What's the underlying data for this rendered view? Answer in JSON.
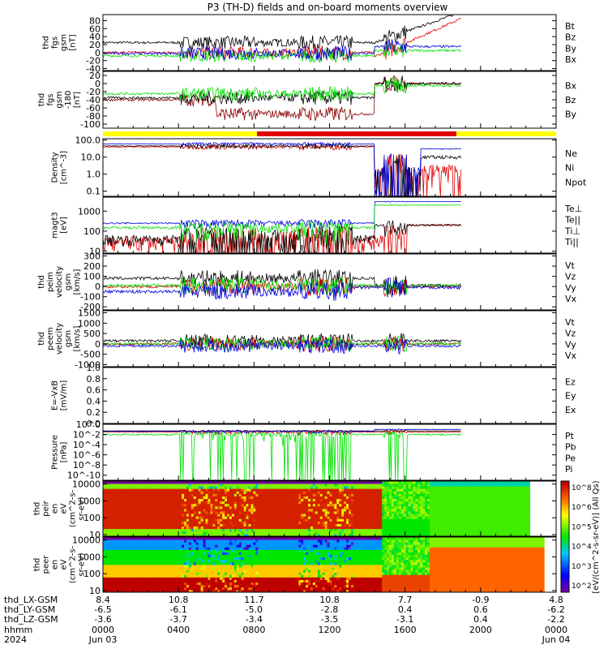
{
  "title": "P3 (TH-D) fields and on-board moments overview",
  "colors": {
    "black": "#000000",
    "red": "#e00000",
    "green": "#00e000",
    "blue": "#0000e0",
    "darkred": "#8b0000",
    "yellow": "#ffff00"
  },
  "chart_data": [
    {
      "type": "line",
      "panel": "fgs",
      "ylabel": [
        "thd",
        "fgs",
        "gsm",
        "[nT]"
      ],
      "yticks": [
        "80",
        "60",
        "40",
        "20",
        "0",
        "-20",
        "-40"
      ],
      "ylim": [
        -45,
        95
      ],
      "series": [
        {
          "name": "Bt",
          "color": "black"
        },
        {
          "name": "Bz",
          "color": "red"
        },
        {
          "name": "By",
          "color": "green"
        },
        {
          "name": "Bx",
          "color": "blue"
        }
      ]
    },
    {
      "type": "line",
      "panel": "fgs-180",
      "ylabel": [
        "thd",
        "fgs",
        "gsm",
        "-180",
        "[nT]"
      ],
      "yticks": [
        "20",
        "0",
        "-20",
        "-40",
        "-60",
        "-80",
        "-100"
      ],
      "ylim": [
        -110,
        30
      ],
      "series": [
        {
          "name": "Bx",
          "color": "darkred"
        },
        {
          "name": "Bz",
          "color": "black"
        },
        {
          "name": "By",
          "color": "green"
        }
      ]
    },
    {
      "type": "line",
      "panel": "density",
      "ylabel": [
        "Density",
        "[cm^-3]"
      ],
      "yscale": "log",
      "yticks": [
        "100.0",
        "10.0",
        "1.0",
        "0.1"
      ],
      "ylim": [
        0.05,
        120
      ],
      "series": [
        {
          "name": "Ne",
          "color": "red"
        },
        {
          "name": "Ni",
          "color": "black"
        },
        {
          "name": "Npot",
          "color": "blue"
        }
      ]
    },
    {
      "type": "line",
      "panel": "temperature",
      "ylabel": [
        "magt3",
        "[eV]"
      ],
      "yscale": "log",
      "yticks": [
        "1000",
        "100",
        "10"
      ],
      "ylim": [
        8,
        5000
      ],
      "series": [
        {
          "name": "Te⊥",
          "color": "red"
        },
        {
          "name": "Te||",
          "color": "black"
        },
        {
          "name": "Ti⊥",
          "color": "blue"
        },
        {
          "name": "Ti||",
          "color": "green"
        }
      ]
    },
    {
      "type": "line",
      "panel": "peim-velocity",
      "ylabel": [
        "thd",
        "peim",
        "velocity",
        "gsm",
        "[km/s]"
      ],
      "yticks": [
        "300",
        "200",
        "100",
        "0",
        "-100",
        "-200"
      ],
      "ylim": [
        -230,
        320
      ],
      "series": [
        {
          "name": "Vt",
          "color": "black"
        },
        {
          "name": "Vz",
          "color": "red"
        },
        {
          "name": "Vy",
          "color": "green"
        },
        {
          "name": "Vx",
          "color": "blue"
        }
      ]
    },
    {
      "type": "line",
      "panel": "peem-velocity",
      "ylabel": [
        "thd",
        "peem",
        "velocity",
        "gsm",
        "[km/s]"
      ],
      "yticks": [
        "1500",
        "1000",
        "500",
        "0",
        "-500",
        "-1000"
      ],
      "ylim": [
        -1100,
        1600
      ],
      "series": [
        {
          "name": "Vt",
          "color": "black"
        },
        {
          "name": "Vz",
          "color": "red"
        },
        {
          "name": "Vy",
          "color": "green"
        },
        {
          "name": "Vx",
          "color": "blue"
        }
      ]
    },
    {
      "type": "line",
      "panel": "efield",
      "ylabel": [
        "E=-VxB",
        "[mV/m]"
      ],
      "yticks": [
        "1.0",
        "0.8",
        "0.6",
        "0.4",
        "0.2",
        "0.0"
      ],
      "ylim": [
        0,
        1
      ],
      "series": [
        {
          "name": "Ez",
          "color": "red"
        },
        {
          "name": "Ey",
          "color": "green"
        },
        {
          "name": "Ex",
          "color": "blue"
        }
      ]
    },
    {
      "type": "line",
      "panel": "pressure",
      "ylabel": [
        "Pressure",
        "[nPa]"
      ],
      "yscale": "log",
      "yticks": [
        "10^0",
        "10^-2",
        "10^-4",
        "10^-6",
        "10^-8",
        "10^-10"
      ],
      "ylim": [
        1e-11,
        1
      ],
      "series": [
        {
          "name": "Pt",
          "color": "black"
        },
        {
          "name": "Pb",
          "color": "red"
        },
        {
          "name": "Pe",
          "color": "green"
        },
        {
          "name": "Pi",
          "color": "blue"
        }
      ]
    },
    {
      "type": "heatmap",
      "panel": "peir",
      "ylabel": [
        "thd",
        "peir",
        "en",
        "eV",
        "(cm^2-s-",
        "sr-eV)"
      ],
      "yscale": "log",
      "yticks": [
        "10000",
        "1000",
        "100",
        "10"
      ],
      "ylim": [
        8,
        15000
      ]
    },
    {
      "type": "heatmap",
      "panel": "peer",
      "ylabel": [
        "thd",
        "peer",
        "en",
        "eV",
        "(cm^2-s-",
        "sr-eV)"
      ],
      "yscale": "log",
      "yticks": [
        "10000",
        "1000",
        "100",
        "10"
      ],
      "ylim": [
        8,
        15000
      ]
    }
  ],
  "colorbar": {
    "label": "[eV/(cm^2-s-sr-eV)] (All Qs)",
    "ticks": [
      "10^8",
      "10^6",
      "10^5",
      "10^4",
      "10^3",
      "10^2"
    ]
  },
  "xaxis": {
    "rows": [
      {
        "label": "thd_LX-GSM",
        "values": [
          "8.4",
          "10.8",
          "11.7",
          "10.8",
          "7.7",
          "-0.9",
          "4.8"
        ]
      },
      {
        "label": "thd_LY-GSM",
        "values": [
          "-6.5",
          "-6.1",
          "-5.0",
          "-2.8",
          "0.4",
          "0.6",
          "-6.2"
        ]
      },
      {
        "label": "thd_LZ-GSM",
        "values": [
          "-3.6",
          "-3.7",
          "-3.4",
          "-3.5",
          "-3.1",
          "0.4",
          "-2.2"
        ]
      },
      {
        "label": "hhmm",
        "values": [
          "0000",
          "0400",
          "0800",
          "1200",
          "1600",
          "2000",
          "0000"
        ]
      },
      {
        "label": "2024",
        "values": [
          "Jun 03",
          "",
          "",
          "",
          "",
          "",
          "Jun 04"
        ]
      }
    ]
  }
}
